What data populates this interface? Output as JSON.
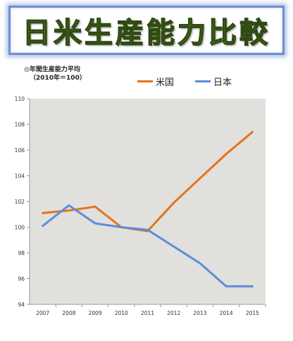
{
  "header": {
    "title": "日米生産能力比較"
  },
  "subtitle": {
    "line1": "◎年間生産能力平均",
    "line2": "（2010年＝100）"
  },
  "colors": {
    "us": "#e3731f",
    "japan": "#5b8dd6",
    "title_fill": "#6f9a36",
    "frame": "#6e8fce"
  },
  "chart_data": {
    "type": "line",
    "x": [
      "2007",
      "2008",
      "2009",
      "2010",
      "2011",
      "2012",
      "2013",
      "2014",
      "2015"
    ],
    "series": [
      {
        "name": "米国",
        "values": [
          101.1,
          101.3,
          101.6,
          100.0,
          99.7,
          101.9,
          103.8,
          105.7,
          107.4
        ]
      },
      {
        "name": "日本",
        "values": [
          100.1,
          101.7,
          100.3,
          100.0,
          99.8,
          98.5,
          97.2,
          95.4,
          95.4
        ]
      }
    ],
    "ylim": [
      94,
      110
    ],
    "yticks": [
      "94",
      "96",
      "98",
      "100",
      "102",
      "104",
      "106",
      "108",
      "110"
    ],
    "grid": false,
    "legend": "top"
  }
}
